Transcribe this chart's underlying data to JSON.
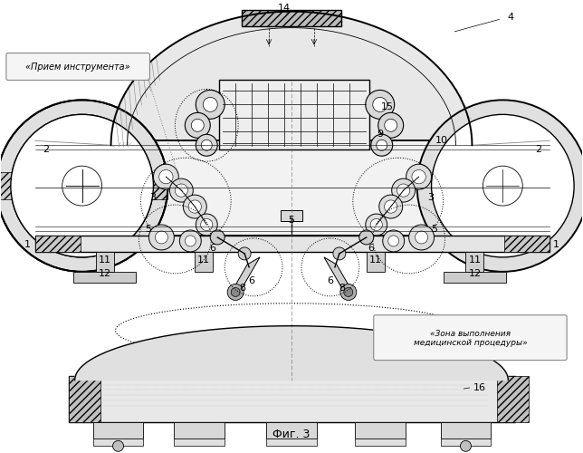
{
  "bg_color": "#ffffff",
  "line_color": "#000000",
  "fig_label": "Фиг. 3",
  "label_priom": "«Прием инструмента»",
  "label_zona": "«Зона выполнения\nмедицинской процедуры»"
}
